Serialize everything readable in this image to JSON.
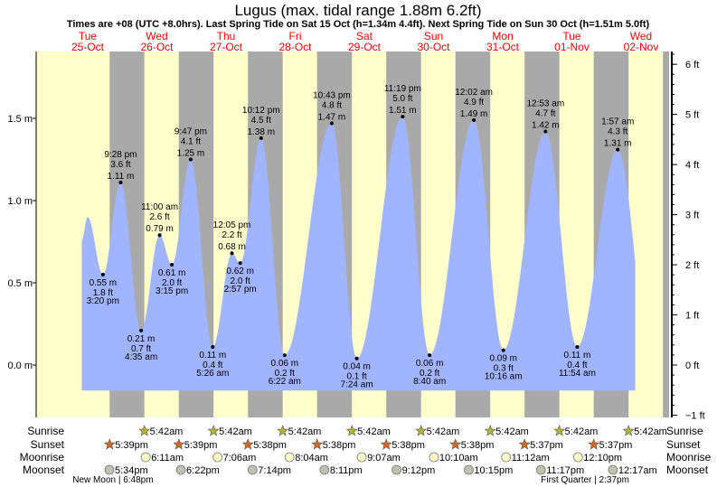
{
  "chart_data": {
    "type": "area",
    "title": "Lugus (max. tidal range 1.88m 6.2ft)",
    "subtitle": "Times are +08 (UTC +8.0hrs). Last Spring Tide on Sat 15 Oct (h=1.34m 4.4ft). Next Spring Tide on Sun 30 Oct (h=1.51m 5.0ft)",
    "days": [
      {
        "dow": "Tue",
        "date": "25-Oct"
      },
      {
        "dow": "Wed",
        "date": "26-Oct"
      },
      {
        "dow": "Thu",
        "date": "27-Oct"
      },
      {
        "dow": "Fri",
        "date": "28-Oct"
      },
      {
        "dow": "Sat",
        "date": "29-Oct"
      },
      {
        "dow": "Sun",
        "date": "30-Oct"
      },
      {
        "dow": "Mon",
        "date": "31-Oct"
      },
      {
        "dow": "Tue",
        "date": "01-Nov"
      },
      {
        "dow": "Wed",
        "date": "02-Nov"
      }
    ],
    "y_left": {
      "unit": "m",
      "ticks": [
        "0.0 m",
        "0.5 m",
        "1.0 m",
        "1.5 m"
      ],
      "values": [
        0,
        0.5,
        1.0,
        1.5
      ],
      "range": [
        -0.19,
        1.92
      ]
    },
    "y_right": {
      "unit": "ft",
      "ticks": [
        "−1 ft",
        "0 ft",
        "1 ft",
        "2 ft",
        "3 ft",
        "4 ft",
        "5 ft",
        "6 ft"
      ],
      "values": [
        -1,
        0,
        1,
        2,
        3,
        4,
        5,
        6
      ]
    },
    "curve_start": {
      "day": 0,
      "hour": 8.0,
      "m": 0.76
    },
    "curve_first_peak": {
      "day": 0,
      "hour": 10.0,
      "m": 0.9
    },
    "curve_end": {
      "day": 8,
      "hour": 8.0,
      "m": 0.63
    },
    "extremes": [
      {
        "type": "low",
        "day": 0,
        "hour": 15.33,
        "time": "3:20 pm",
        "ft": "1.8 ft",
        "m": 0.55,
        "m_label": "0.55 m"
      },
      {
        "type": "high",
        "day": 0,
        "hour": 21.47,
        "time": "9:28 pm",
        "ft": "3.6 ft",
        "m": 1.11,
        "m_label": "1.11 m"
      },
      {
        "type": "low",
        "day": 1,
        "hour": 4.58,
        "time": "4:35 am",
        "ft": "0.7 ft",
        "m": 0.21,
        "m_label": "0.21 m"
      },
      {
        "type": "high",
        "day": 1,
        "hour": 11.0,
        "time": "11:00 am",
        "ft": "2.6 ft",
        "m": 0.79,
        "m_label": "0.79 m"
      },
      {
        "type": "low",
        "day": 1,
        "hour": 15.25,
        "time": "3:15 pm",
        "ft": "2.0 ft",
        "m": 0.61,
        "m_label": "0.61 m"
      },
      {
        "type": "high",
        "day": 1,
        "hour": 21.78,
        "time": "9:47 pm",
        "ft": "4.1 ft",
        "m": 1.25,
        "m_label": "1.25 m"
      },
      {
        "type": "low",
        "day": 2,
        "hour": 5.43,
        "time": "5:26 am",
        "ft": "0.4 ft",
        "m": 0.11,
        "m_label": "0.11 m"
      },
      {
        "type": "high",
        "day": 2,
        "hour": 12.08,
        "time": "12:05 pm",
        "ft": "2.2 ft",
        "m": 0.68,
        "m_label": "0.68 m"
      },
      {
        "type": "low",
        "day": 2,
        "hour": 14.95,
        "time": "2:57 pm",
        "ft": "2.0 ft",
        "m": 0.62,
        "m_label": "0.62 m"
      },
      {
        "type": "high",
        "day": 2,
        "hour": 22.2,
        "time": "10:12 pm",
        "ft": "4.5 ft",
        "m": 1.38,
        "m_label": "1.38 m"
      },
      {
        "type": "low",
        "day": 3,
        "hour": 6.37,
        "time": "6:22 am",
        "ft": "0.2 ft",
        "m": 0.06,
        "m_label": "0.06 m"
      },
      {
        "type": "high",
        "day": 3,
        "hour": 22.72,
        "time": "10:43 pm",
        "ft": "4.8 ft",
        "m": 1.47,
        "m_label": "1.47 m"
      },
      {
        "type": "low",
        "day": 4,
        "hour": 7.4,
        "time": "7:24 am",
        "ft": "0.1 ft",
        "m": 0.04,
        "m_label": "0.04 m"
      },
      {
        "type": "high",
        "day": 4,
        "hour": 23.32,
        "time": "11:19 pm",
        "ft": "5.0 ft",
        "m": 1.51,
        "m_label": "1.51 m"
      },
      {
        "type": "low",
        "day": 5,
        "hour": 8.67,
        "time": "8:40 am",
        "ft": "0.2 ft",
        "m": 0.06,
        "m_label": "0.06 m"
      },
      {
        "type": "high",
        "day": 6,
        "hour": 0.03,
        "time": "12:02 am",
        "ft": "4.9 ft",
        "m": 1.49,
        "m_label": "1.49 m"
      },
      {
        "type": "low",
        "day": 6,
        "hour": 10.27,
        "time": "10:16 am",
        "ft": "0.3 ft",
        "m": 0.09,
        "m_label": "0.09 m"
      },
      {
        "type": "high",
        "day": 7,
        "hour": 0.88,
        "time": "12:53 am",
        "ft": "4.7 ft",
        "m": 1.42,
        "m_label": "1.42 m"
      },
      {
        "type": "low",
        "day": 7,
        "hour": 11.9,
        "time": "11:54 am",
        "ft": "0.4 ft",
        "m": 0.11,
        "m_label": "0.11 m"
      },
      {
        "type": "high",
        "day": 8,
        "hour": 1.95,
        "time": "1:57 am",
        "ft": "4.3 ft",
        "m": 1.31,
        "m_label": "1.31 m"
      }
    ],
    "colors": {
      "water": "#a0b4ff",
      "day": "#ffffcc",
      "night": "#a9a9a9",
      "day_label": "#ff0000",
      "sunrise": "#b5b335",
      "sunset": "#d2691e",
      "moonrise": "#ffffcc",
      "moonset": "#c0c0b0"
    }
  },
  "astro": {
    "row_labels": {
      "sunrise": "Sunrise",
      "sunset": "Sunset",
      "moonrise": "Moonrise",
      "moonset": "Moonset"
    },
    "sunrise": [
      {
        "day": 1,
        "hour": 5.7,
        "label": "5:42am"
      },
      {
        "day": 2,
        "hour": 5.7,
        "label": "5:42am"
      },
      {
        "day": 3,
        "hour": 5.7,
        "label": "5:42am"
      },
      {
        "day": 4,
        "hour": 5.7,
        "label": "5:42am"
      },
      {
        "day": 5,
        "hour": 5.7,
        "label": "5:42am"
      },
      {
        "day": 6,
        "hour": 5.7,
        "label": "5:42am"
      },
      {
        "day": 7,
        "hour": 5.7,
        "label": "5:42am"
      },
      {
        "day": 8,
        "hour": 5.7,
        "label": "5:42am"
      }
    ],
    "sunset": [
      {
        "day": 0,
        "hour": 17.65,
        "label": "5:39pm"
      },
      {
        "day": 1,
        "hour": 17.65,
        "label": "5:39pm"
      },
      {
        "day": 2,
        "hour": 17.63,
        "label": "5:38pm"
      },
      {
        "day": 3,
        "hour": 17.63,
        "label": "5:38pm"
      },
      {
        "day": 4,
        "hour": 17.63,
        "label": "5:38pm"
      },
      {
        "day": 5,
        "hour": 17.63,
        "label": "5:38pm"
      },
      {
        "day": 6,
        "hour": 17.62,
        "label": "5:37pm"
      },
      {
        "day": 7,
        "hour": 17.62,
        "label": "5:37pm"
      }
    ],
    "sunset_last": {
      "day": 8,
      "hour": 17.62
    },
    "moonrise": [
      {
        "day": 1,
        "hour": 6.18,
        "label": "6:11am"
      },
      {
        "day": 2,
        "hour": 7.1,
        "label": "7:06am"
      },
      {
        "day": 3,
        "hour": 8.07,
        "label": "8:04am"
      },
      {
        "day": 4,
        "hour": 9.12,
        "label": "9:07am"
      },
      {
        "day": 5,
        "hour": 10.17,
        "label": "10:10am"
      },
      {
        "day": 6,
        "hour": 11.2,
        "label": "11:12am"
      },
      {
        "day": 7,
        "hour": 12.17,
        "label": "12:10pm"
      }
    ],
    "moonset": [
      {
        "day": 0,
        "hour": 17.57,
        "label": "5:34pm"
      },
      {
        "day": 1,
        "hour": 18.37,
        "label": "6:22pm"
      },
      {
        "day": 2,
        "hour": 19.23,
        "label": "7:14pm"
      },
      {
        "day": 3,
        "hour": 20.18,
        "label": "8:11pm"
      },
      {
        "day": 4,
        "hour": 21.2,
        "label": "9:12pm"
      },
      {
        "day": 5,
        "hour": 22.25,
        "label": "10:15pm"
      },
      {
        "day": 6,
        "hour": 23.28,
        "label": "11:17pm"
      },
      {
        "day": 8,
        "hour": 0.28,
        "label": "12:17am"
      }
    ],
    "phases": [
      {
        "day": 0,
        "hour": 18.8,
        "label": "New Moon | 6:48pm"
      },
      {
        "day": 7,
        "hour": 14.62,
        "label": "First Quarter | 2:37pm"
      }
    ]
  }
}
